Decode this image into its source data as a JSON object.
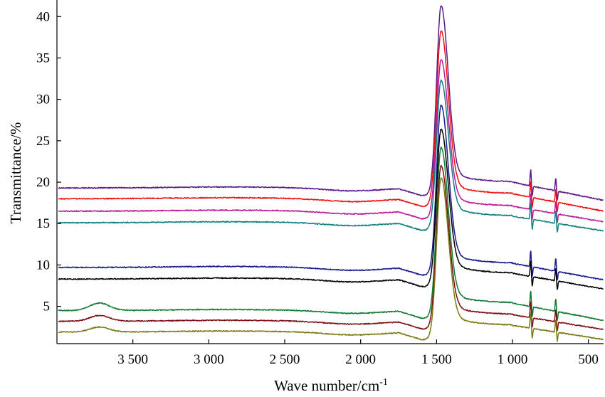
{
  "chart_data": {
    "type": "line",
    "xlabel": "Wave number/cm",
    "xlabel_sup": "-1",
    "ylabel": "Transmittance/%",
    "xlim": [
      4000,
      400
    ],
    "ylim": [
      0.5,
      42
    ],
    "x_reversed": true,
    "x_ticks": [
      3500,
      3000,
      2500,
      2000,
      1500,
      1000,
      500
    ],
    "x_tick_labels": [
      "3 500",
      "3 000",
      "2 500",
      "2 000",
      "1 500",
      "1 000",
      "500"
    ],
    "y_ticks": [
      5,
      10,
      15,
      20,
      25,
      30,
      35,
      40
    ],
    "y_tick_labels": [
      "5",
      "10",
      "15",
      "20",
      "25",
      "30",
      "35",
      "40"
    ],
    "grid": false,
    "legend": "none",
    "series": [
      {
        "color": "#5c1a8a",
        "base": 19.3,
        "peak": 41.3,
        "post": 20.0,
        "end": 17.8,
        "left_bump": 0.0
      },
      {
        "color": "#ee1111",
        "base": 18.0,
        "peak": 38.3,
        "post": 18.6,
        "end": 16.5,
        "left_bump": 0.0
      },
      {
        "color": "#bb1a9a",
        "base": 16.5,
        "peak": 34.8,
        "post": 17.1,
        "end": 15.2,
        "left_bump": 0.0
      },
      {
        "color": "#137f7f",
        "base": 15.1,
        "peak": 32.3,
        "post": 15.9,
        "end": 14.1,
        "left_bump": 0.0
      },
      {
        "color": "#1a1a8a",
        "base": 9.7,
        "peak": 29.3,
        "post": 10.2,
        "end": 8.2,
        "left_bump": 0.0
      },
      {
        "color": "#000000",
        "base": 8.3,
        "peak": 26.4,
        "post": 9.0,
        "end": 7.1,
        "left_bump": 0.0
      },
      {
        "color": "#117a33",
        "base": 4.5,
        "peak": 24.2,
        "post": 5.4,
        "end": 3.3,
        "left_bump": 0.9
      },
      {
        "color": "#7a0f14",
        "base": 3.2,
        "peak": 22.0,
        "post": 4.0,
        "end": 2.2,
        "left_bump": 0.7
      },
      {
        "color": "#7a7a12",
        "base": 1.9,
        "peak": 20.5,
        "post": 2.7,
        "end": 1.0,
        "left_bump": 0.6
      }
    ]
  }
}
